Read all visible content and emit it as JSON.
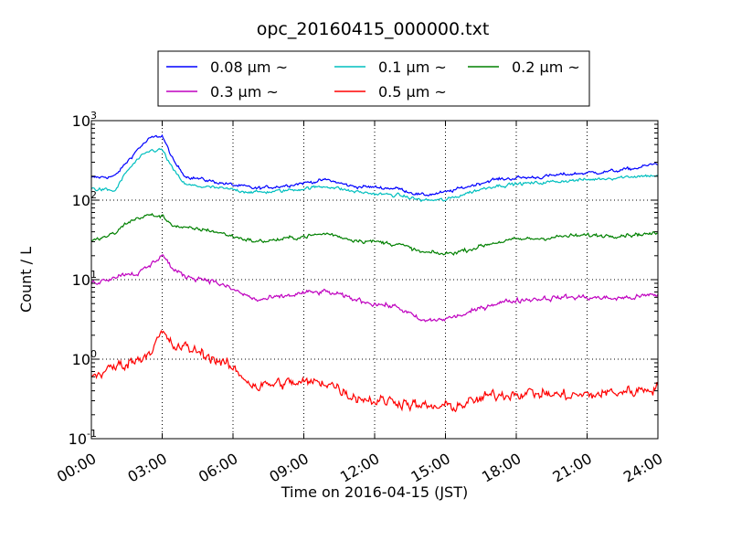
{
  "chart_data": {
    "type": "line",
    "title": "opc_20160415_000000.txt",
    "xlabel": "Time on 2016-04-15 (JST)",
    "ylabel": "Count / L",
    "yscale": "log",
    "ylim": [
      0.1,
      1000
    ],
    "xlim": [
      "00:00",
      "24:00"
    ],
    "x_tick_labels": [
      "00:00",
      "03:00",
      "06:00",
      "09:00",
      "12:00",
      "15:00",
      "18:00",
      "21:00",
      "24:00"
    ],
    "y_tick_labels": [
      {
        "base": "10",
        "exp": "-1"
      },
      {
        "base": "10",
        "exp": "0"
      },
      {
        "base": "10",
        "exp": "1"
      },
      {
        "base": "10",
        "exp": "2"
      },
      {
        "base": "10",
        "exp": "3"
      }
    ],
    "grid": true,
    "legend_position": "top",
    "x": [
      "00:00",
      "01:00",
      "01:30",
      "02:00",
      "02:30",
      "03:00",
      "03:30",
      "04:00",
      "05:00",
      "06:00",
      "07:00",
      "08:00",
      "09:00",
      "10:00",
      "11:00",
      "12:00",
      "13:00",
      "14:00",
      "15:00",
      "16:00",
      "17:00",
      "18:00",
      "19:00",
      "20:00",
      "21:00",
      "22:00",
      "23:00",
      "24:00"
    ],
    "series": [
      {
        "name": "0.08 μm ~",
        "color": "#0000ff",
        "noise": 0.03,
        "values": [
          190,
          200,
          300,
          450,
          600,
          650,
          300,
          200,
          175,
          155,
          140,
          150,
          165,
          180,
          150,
          145,
          140,
          115,
          125,
          150,
          180,
          190,
          195,
          210,
          220,
          230,
          250,
          290
        ]
      },
      {
        "name": "0.1 μm ~",
        "color": "#00bfbf",
        "noise": 0.03,
        "values": [
          140,
          130,
          230,
          330,
          420,
          430,
          230,
          155,
          145,
          135,
          125,
          130,
          140,
          150,
          130,
          120,
          115,
          100,
          100,
          125,
          150,
          160,
          165,
          175,
          180,
          190,
          200,
          205
        ]
      },
      {
        "name": "0.2 μm ~",
        "color": "#008000",
        "noise": 0.035,
        "values": [
          30,
          38,
          52,
          60,
          65,
          62,
          48,
          44,
          42,
          35,
          30,
          32,
          35,
          38,
          32,
          30,
          28,
          22,
          21,
          24,
          29,
          32,
          33,
          35,
          36,
          36,
          37,
          38
        ]
      },
      {
        "name": "0.3 μm ~",
        "color": "#bf00bf",
        "noise": 0.045,
        "values": [
          9,
          11,
          12,
          12,
          15,
          21,
          13,
          11,
          10,
          7.5,
          5.5,
          6,
          6.8,
          7,
          5.8,
          5,
          4.5,
          3,
          3.2,
          3.8,
          5,
          5.5,
          5.8,
          6,
          6,
          5.8,
          6,
          6.5
        ]
      },
      {
        "name": "0.5 μm ~",
        "color": "#ff0000",
        "noise": 0.1,
        "values": [
          0.6,
          0.8,
          0.9,
          1.0,
          1.3,
          2.1,
          1.4,
          1.4,
          1.1,
          0.75,
          0.45,
          0.5,
          0.5,
          0.52,
          0.35,
          0.3,
          0.3,
          0.25,
          0.25,
          0.28,
          0.35,
          0.38,
          0.37,
          0.35,
          0.35,
          0.38,
          0.4,
          0.45
        ]
      }
    ]
  }
}
